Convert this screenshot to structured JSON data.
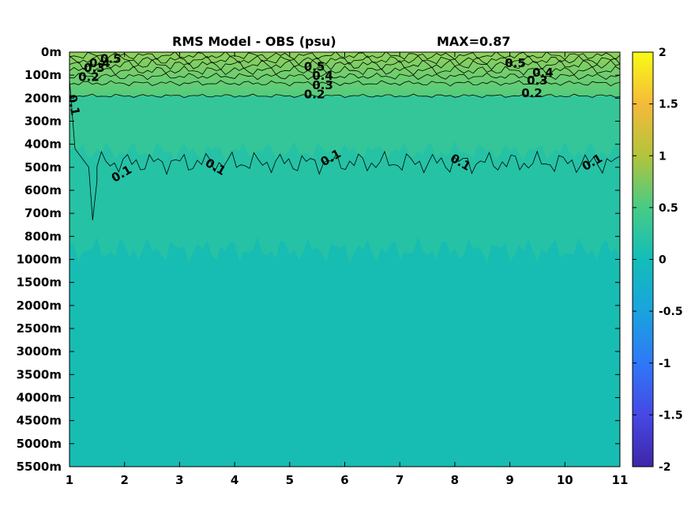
{
  "chart_data": {
    "type": "heatmap",
    "title": "RMS Model - OBS (psu)",
    "max_label": "MAX=0.87",
    "xlabel": "",
    "ylabel": "",
    "x_ticks": [
      "1",
      "2",
      "3",
      "4",
      "5",
      "6",
      "7",
      "8",
      "9",
      "10",
      "11"
    ],
    "xlim": [
      1,
      11
    ],
    "y_ticks": [
      "0m",
      "100m",
      "200m",
      "300m",
      "400m",
      "500m",
      "600m",
      "700m",
      "800m",
      "1000m",
      "1500m",
      "2000m",
      "2500m",
      "3000m",
      "3500m",
      "4000m",
      "4500m",
      "5000m",
      "5500m"
    ],
    "colorbar": {
      "ticks": [
        "2",
        "1.5",
        "1",
        "0.5",
        "0",
        "-0.5",
        "-1",
        "-1.5",
        "-2"
      ],
      "range": [
        -2,
        2
      ],
      "colormap": "parula"
    },
    "contour_levels": [
      0.1,
      0.2,
      0.3,
      0.4,
      0.5
    ],
    "contour_labels": [
      {
        "text": "0.5",
        "x": 1.75,
        "y": 0.3
      },
      {
        "text": "0.4",
        "x": 1.55,
        "y": 0.5
      },
      {
        "text": "0.3",
        "x": 1.45,
        "y": 0.7
      },
      {
        "text": "0.2",
        "x": 1.35,
        "y": 1.1
      },
      {
        "text": "0.1",
        "x": 1.07,
        "y": 2.3
      },
      {
        "text": "0.1",
        "x": 1.95,
        "y": 5.3
      },
      {
        "text": "0.1",
        "x": 3.65,
        "y": 5.0
      },
      {
        "text": "0.1",
        "x": 5.75,
        "y": 4.6
      },
      {
        "text": "0.1",
        "x": 8.1,
        "y": 4.8
      },
      {
        "text": "0.1",
        "x": 10.5,
        "y": 4.8
      },
      {
        "text": "0.5",
        "x": 5.45,
        "y": 0.65
      },
      {
        "text": "0.4",
        "x": 5.6,
        "y": 1.05
      },
      {
        "text": "0.3",
        "x": 5.6,
        "y": 1.45
      },
      {
        "text": "0.2",
        "x": 5.45,
        "y": 1.85
      },
      {
        "text": "0.5",
        "x": 9.1,
        "y": 0.5
      },
      {
        "text": "0.4",
        "x": 9.6,
        "y": 0.9
      },
      {
        "text": "0.3",
        "x": 9.5,
        "y": 1.25
      },
      {
        "text": "0.2",
        "x": 9.4,
        "y": 1.8
      }
    ]
  }
}
